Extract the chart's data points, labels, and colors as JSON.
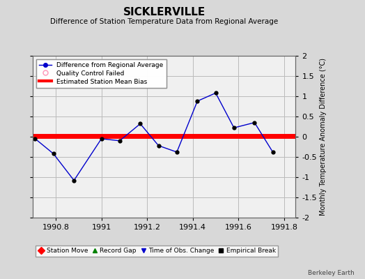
{
  "title": "SICKLERVILLE",
  "subtitle": "Difference of Station Temperature Data from Regional Average",
  "ylabel_right": "Monthly Temperature Anomaly Difference (°C)",
  "background_color": "#d8d8d8",
  "plot_bg_color": "#f0f0f0",
  "grid_color": "#bbbbbb",
  "xlim": [
    1990.7,
    1991.85
  ],
  "ylim": [
    -2,
    2
  ],
  "xticks": [
    1990.8,
    1991.0,
    1991.2,
    1991.4,
    1991.6,
    1991.8
  ],
  "xtick_labels": [
    "1990.8",
    "1991",
    "1991.2",
    "1991.4",
    "1991.6",
    "1991.8"
  ],
  "yticks": [
    -2,
    -1.5,
    -1,
    -0.5,
    0,
    0.5,
    1,
    1.5,
    2
  ],
  "line_x": [
    1990.71,
    1990.79,
    1990.88,
    1991.0,
    1991.08,
    1991.17,
    1991.25,
    1991.33,
    1991.42,
    1991.5,
    1991.58,
    1991.67,
    1991.75
  ],
  "line_y": [
    -0.05,
    -0.42,
    -1.08,
    -0.05,
    -0.1,
    0.32,
    -0.22,
    -0.38,
    0.88,
    1.08,
    0.22,
    0.35,
    -0.38
  ],
  "line_color": "#0000cc",
  "marker_color": "#000000",
  "bias_value": 0.02,
  "bias_color": "#ff0000",
  "bias_linewidth": 5,
  "watermark": "Berkeley Earth",
  "leg1_labels": [
    "Difference from Regional Average",
    "Quality Control Failed",
    "Estimated Station Mean Bias"
  ],
  "leg2_labels": [
    "Station Move",
    "Record Gap",
    "Time of Obs. Change",
    "Empirical Break"
  ],
  "leg2_colors": [
    "#ff0000",
    "#008000",
    "#0000cc",
    "#000000"
  ],
  "leg2_markers": [
    "D",
    "^",
    "v",
    "s"
  ]
}
